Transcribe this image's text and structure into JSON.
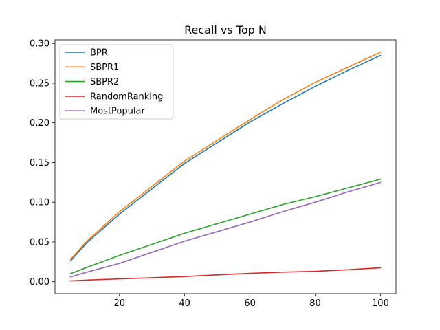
{
  "chart_data": {
    "type": "line",
    "title": "Recall vs Top N",
    "xlabel": "",
    "ylabel": "",
    "xlim": [
      0.25,
      104.75
    ],
    "ylim": [
      -0.015,
      0.3045
    ],
    "xticks": [
      20,
      40,
      60,
      80,
      100
    ],
    "xtick_labels": [
      "20",
      "40",
      "60",
      "80",
      "100"
    ],
    "yticks": [
      0.0,
      0.05,
      0.1,
      0.15,
      0.2,
      0.25,
      0.3
    ],
    "ytick_labels": [
      "0.00",
      "0.05",
      "0.10",
      "0.15",
      "0.20",
      "0.25",
      "0.30"
    ],
    "grid": false,
    "legend_position": "top-left",
    "x": [
      5,
      10,
      20,
      30,
      40,
      50,
      60,
      70,
      80,
      90,
      100
    ],
    "series": [
      {
        "name": "BPR",
        "color": "#1f77b4",
        "values": [
          0.026,
          0.049,
          0.085,
          0.117,
          0.149,
          0.175,
          0.201,
          0.224,
          0.246,
          0.266,
          0.285
        ]
      },
      {
        "name": "SBPR1",
        "color": "#ff7f0e",
        "values": [
          0.028,
          0.051,
          0.088,
          0.12,
          0.152,
          0.178,
          0.204,
          0.229,
          0.251,
          0.27,
          0.289
        ]
      },
      {
        "name": "SBPR2",
        "color": "#2ca02c",
        "values": [
          0.01,
          0.018,
          0.033,
          0.047,
          0.061,
          0.073,
          0.085,
          0.097,
          0.107,
          0.118,
          0.129
        ]
      },
      {
        "name": "RandomRanking",
        "color": "#d62728",
        "values": [
          0.001,
          0.002,
          0.0035,
          0.005,
          0.0065,
          0.0085,
          0.0105,
          0.012,
          0.013,
          0.015,
          0.0175
        ]
      },
      {
        "name": "MostPopular",
        "color": "#9467bd",
        "values": [
          0.006,
          0.012,
          0.023,
          0.037,
          0.051,
          0.063,
          0.075,
          0.088,
          0.1,
          0.113,
          0.125
        ]
      }
    ]
  }
}
